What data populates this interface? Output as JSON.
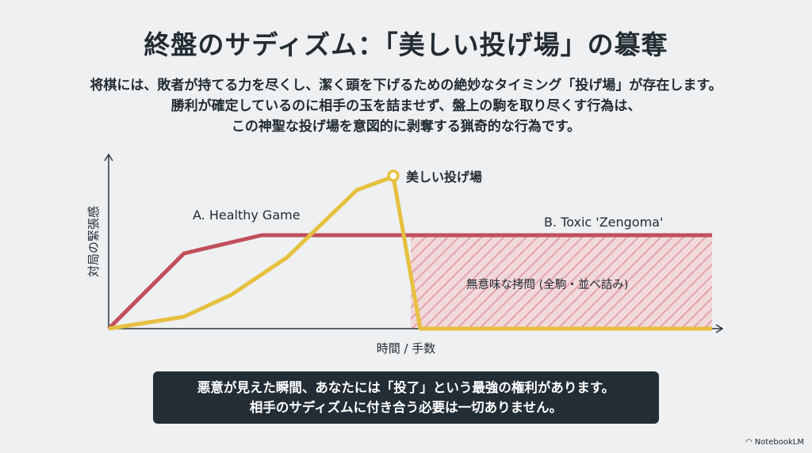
{
  "title": "終盤のサディズム：「美しい投げ場」の簒奪",
  "intro_lines": [
    "将棋には、敗者が持てる力を尽くし、潔く頭を下げるための絶妙なタイミング「投げ場」が存在します。",
    "勝利が確定しているのに相手の玉を詰ませず、盤上の駒を取り尽くす行為は、",
    "この神聖な投げ場を意図的に剥奪する猟奇的な行為です。"
  ],
  "diagram": {
    "y_axis_label": "対局の緊張感",
    "x_axis_label": "時間 / 手数",
    "healthy_label": "A. Healthy Game",
    "toxic_label": "B. Toxic 'Zengoma'",
    "peak_label": "美しい投げ場",
    "hatched_label": "無意味な拷問 (全駒・並べ詰み)",
    "colors": {
      "healthy": "#e6c040",
      "toxic": "#c0505a",
      "hatch": "#e8a8ad",
      "axis": "#2b3640"
    }
  },
  "callout_lines": [
    "悪意が見えた瞬間、あなたには「投了」という最強の権利があります。",
    "相手のサディズムに付き合う必要は一切ありません。"
  ],
  "brand": "NotebookLM"
}
